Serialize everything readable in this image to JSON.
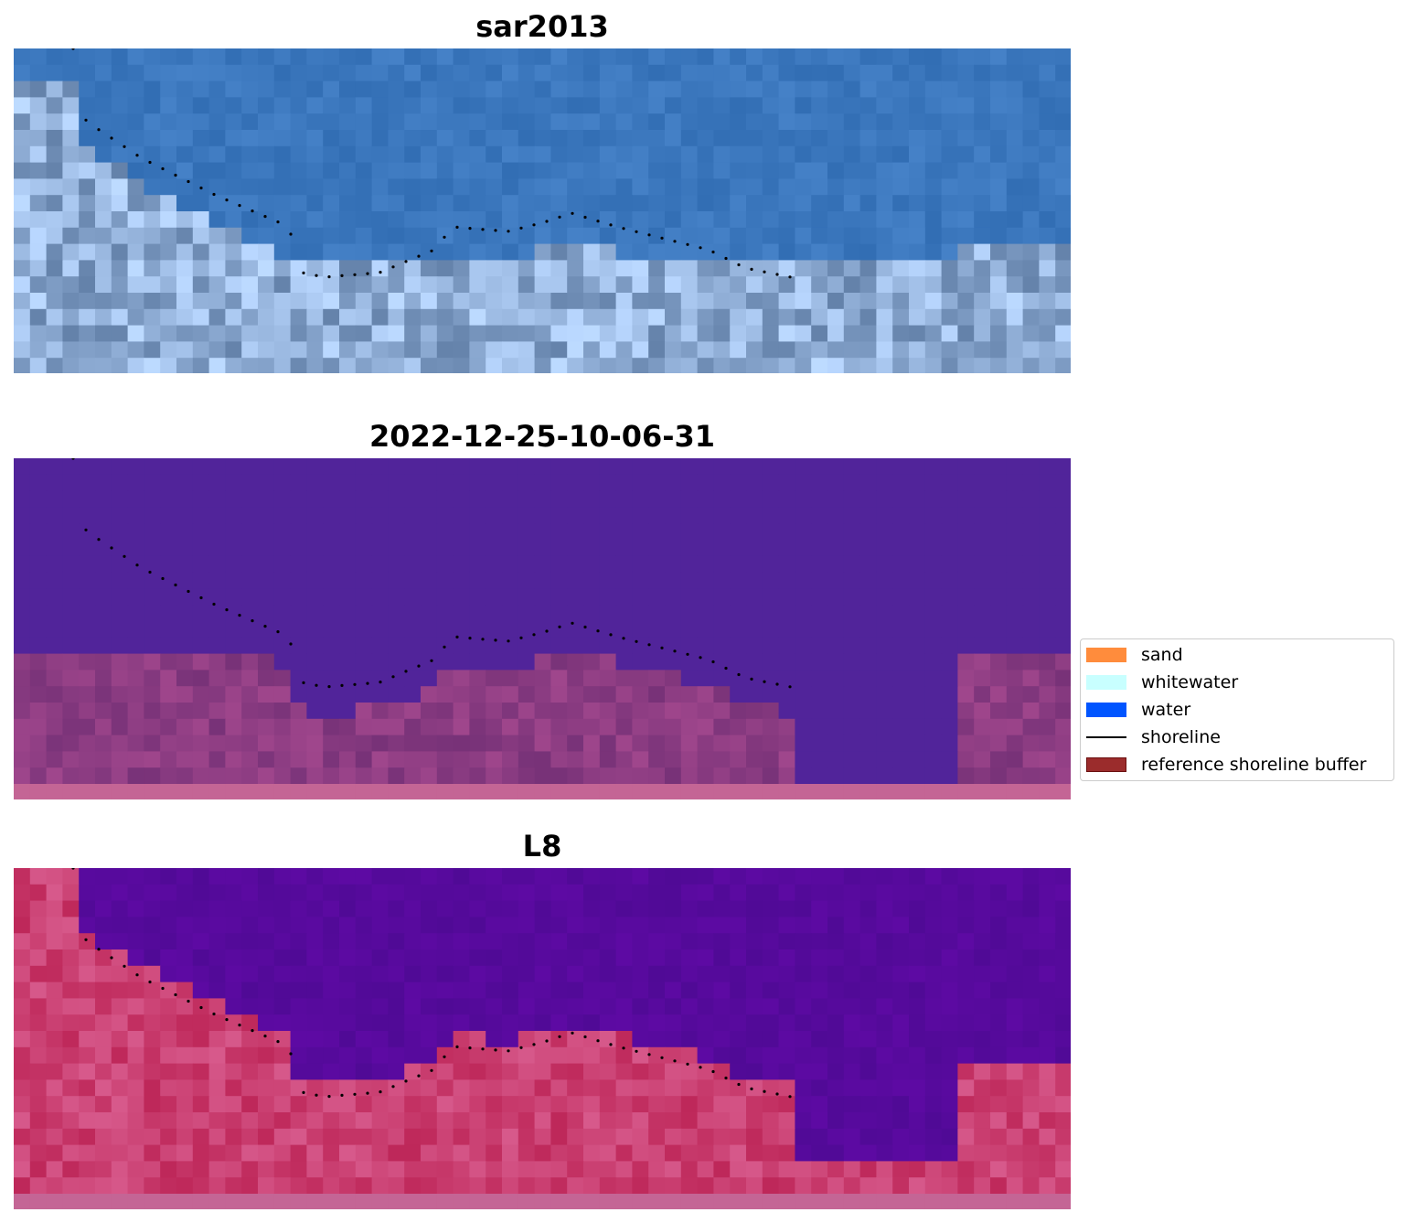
{
  "panels": [
    {
      "title": "sar2013",
      "style": "sar"
    },
    {
      "title": "2022-12-25-10-06-31",
      "style": "classified"
    },
    {
      "title": "L8",
      "style": "l8"
    }
  ],
  "legend": {
    "items": [
      {
        "label": "sand",
        "color": "#ff8c3c",
        "kind": "patch"
      },
      {
        "label": "whitewater",
        "color": "#c8ffff",
        "kind": "patch"
      },
      {
        "label": "water",
        "color": "#0055ff",
        "kind": "patch"
      },
      {
        "label": "shoreline",
        "color": "#000000",
        "kind": "line"
      },
      {
        "label": "reference shoreline buffer",
        "color": "#9b2c2c",
        "kind": "patch"
      }
    ]
  }
}
